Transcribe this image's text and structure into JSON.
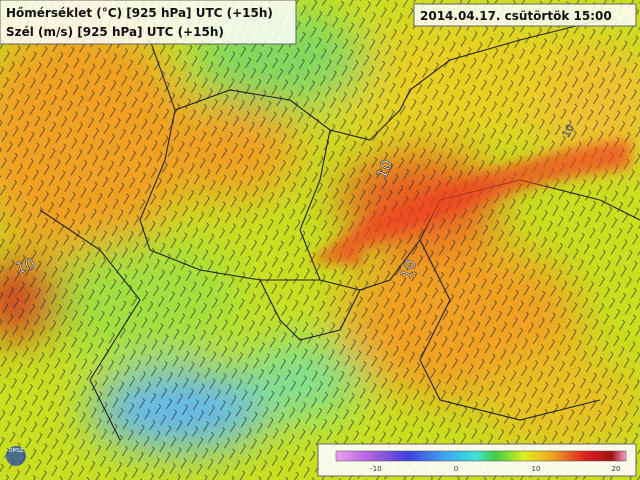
{
  "header": {
    "line1": "Hőmérséklet (°C) [925 hPa] UTC (+15h)",
    "line2": "Szél (m/s) [925 hPa] UTC (+15h)",
    "datetime": "2014.04.17. csütörtök 15:00"
  },
  "contour_labels": [
    "10",
    "10",
    "10",
    "10"
  ],
  "colorbar": {
    "ticks": [
      "-10",
      "0",
      "10",
      "20"
    ]
  },
  "logo": "OMSZ"
}
